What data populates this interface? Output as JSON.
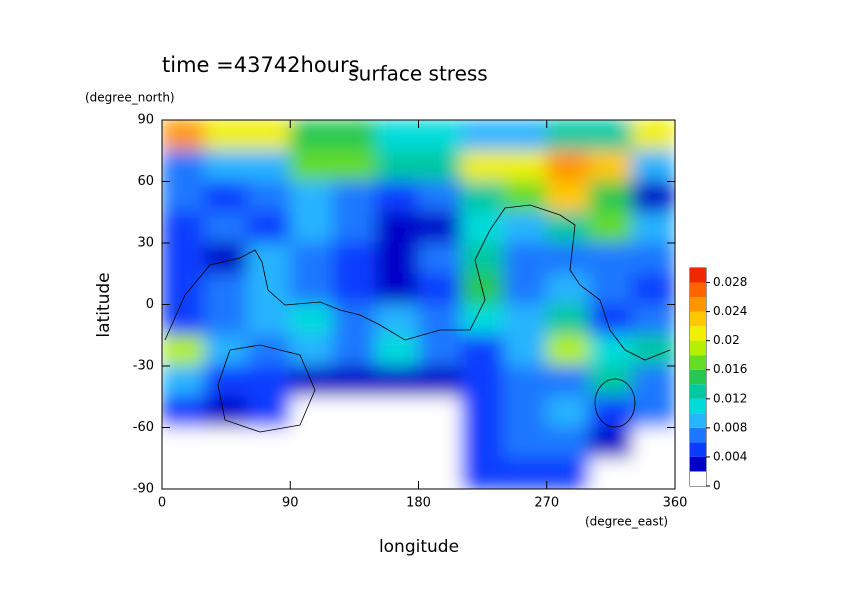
{
  "chart_data": {
    "type": "contour",
    "time_label": "time =43742hours",
    "title": "surface stress",
    "y_unit": "(degree_north)",
    "x_unit": "(degree_east)",
    "y_label": "latitude",
    "x_label": "longitude",
    "xlim": [
      0,
      360
    ],
    "xticks": [
      0,
      90,
      180,
      270,
      360
    ],
    "ylim": [
      -90,
      90
    ],
    "yticks": [
      -90,
      -60,
      -30,
      0,
      30,
      60,
      90
    ],
    "x": [
      15,
      45,
      75,
      105,
      135,
      165,
      195,
      225,
      255,
      285,
      315,
      345
    ],
    "y": [
      82.5,
      67.5,
      52.5,
      37.5,
      22.5,
      7.5,
      -7.5,
      -22.5,
      -37.5,
      -52.5,
      -67.5,
      -82.5
    ],
    "z": [
      [
        0.024,
        0.02,
        0.02,
        0.014,
        0.014,
        0.01,
        0.01,
        0.008,
        0.008,
        0.012,
        0.012,
        0.02
      ],
      [
        0.006,
        0.008,
        0.008,
        0.016,
        0.016,
        0.012,
        0.012,
        0.02,
        0.02,
        0.024,
        0.022,
        0.008
      ],
      [
        0.006,
        0.004,
        0.006,
        0.008,
        0.006,
        0.004,
        0.006,
        0.012,
        0.016,
        0.022,
        0.014,
        0.002
      ],
      [
        0.004,
        0.006,
        0.004,
        0.008,
        0.006,
        0.003,
        0.002,
        0.01,
        0.008,
        0.012,
        0.016,
        0.008
      ],
      [
        0.004,
        0.002,
        0.008,
        0.006,
        0.004,
        0.002,
        0.006,
        0.012,
        0.006,
        0.006,
        0.006,
        0.006
      ],
      [
        0.004,
        0.006,
        0.008,
        0.006,
        0.004,
        0.002,
        0.004,
        0.014,
        0.006,
        0.008,
        0.006,
        0.004
      ],
      [
        0.004,
        0.006,
        0.008,
        0.01,
        0.006,
        0.008,
        0.006,
        0.01,
        0.008,
        0.012,
        0.004,
        0.006
      ],
      [
        0.018,
        0.008,
        0.006,
        0.008,
        0.006,
        0.01,
        0.006,
        0.004,
        0.008,
        0.018,
        0.01,
        0.012
      ],
      [
        0.008,
        0.004,
        0.004,
        0.002,
        0.002,
        0.002,
        0.002,
        0.004,
        0.006,
        0.006,
        0.012,
        0.006
      ],
      [
        0.004,
        0.002,
        0.004,
        0,
        0,
        0,
        0,
        0.004,
        0.006,
        0.008,
        0.004,
        0.006
      ],
      [
        0,
        0,
        0,
        0,
        0,
        0,
        0,
        0.004,
        0.006,
        0.006,
        0.002,
        0
      ],
      [
        0,
        0,
        0,
        0,
        0,
        0,
        0,
        0.004,
        0.004,
        0.004,
        0,
        0
      ]
    ],
    "levels": [
      0,
      0.002,
      0.004,
      0.006,
      0.008,
      0.01,
      0.012,
      0.014,
      0.016,
      0.018,
      0.02,
      0.022,
      0.024,
      0.026,
      0.028,
      0.03
    ],
    "colors": [
      "#ffffff",
      "#0000c8",
      "#0a3cff",
      "#1e78ff",
      "#28b4ff",
      "#00dcdc",
      "#00c8a0",
      "#28c850",
      "#64dc28",
      "#b4f000",
      "#f0f000",
      "#ffc800",
      "#ff9600",
      "#ff6400",
      "#f02800"
    ],
    "cbar_ticks": [
      0,
      0.004,
      0.008,
      0.012,
      0.016,
      0.02,
      0.024,
      0.028
    ]
  }
}
